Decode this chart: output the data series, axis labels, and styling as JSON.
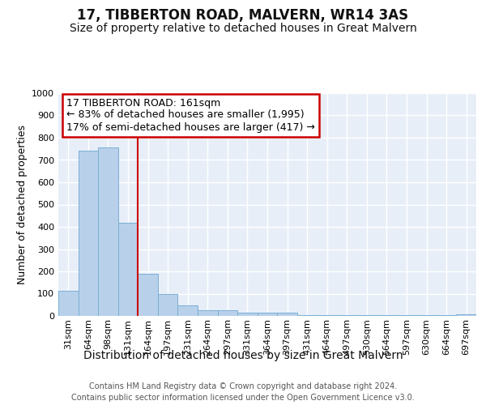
{
  "title": "17, TIBBERTON ROAD, MALVERN, WR14 3AS",
  "subtitle": "Size of property relative to detached houses in Great Malvern",
  "xlabel": "Distribution of detached houses by size in Great Malvern",
  "ylabel": "Number of detached properties",
  "categories": [
    "31sqm",
    "64sqm",
    "98sqm",
    "131sqm",
    "164sqm",
    "197sqm",
    "231sqm",
    "264sqm",
    "297sqm",
    "331sqm",
    "364sqm",
    "397sqm",
    "431sqm",
    "464sqm",
    "497sqm",
    "530sqm",
    "564sqm",
    "597sqm",
    "630sqm",
    "664sqm",
    "697sqm"
  ],
  "values": [
    113,
    743,
    755,
    420,
    190,
    97,
    47,
    25,
    25,
    15,
    15,
    15,
    2,
    2,
    2,
    2,
    2,
    2,
    2,
    2,
    8
  ],
  "bar_color": "#b8d0ea",
  "bar_edge_color": "#7aafd4",
  "bg_color": "#e8eef8",
  "grid_color": "#ffffff",
  "vline_color": "#cc0000",
  "vline_pos": 3.5,
  "annotation_line1": "17 TIBBERTON ROAD: 161sqm",
  "annotation_line2": "← 83% of detached houses are smaller (1,995)",
  "annotation_line3": "17% of semi-detached houses are larger (417) →",
  "annotation_box_color": "#ffffff",
  "annotation_box_edge": "#cc0000",
  "ylim": [
    0,
    1000
  ],
  "yticks": [
    0,
    100,
    200,
    300,
    400,
    500,
    600,
    700,
    800,
    900,
    1000
  ],
  "footer_line1": "Contains HM Land Registry data © Crown copyright and database right 2024.",
  "footer_line2": "Contains public sector information licensed under the Open Government Licence v3.0.",
  "title_fontsize": 12,
  "subtitle_fontsize": 10,
  "ylabel_fontsize": 9,
  "xlabel_fontsize": 10,
  "tick_fontsize": 8,
  "annot_fontsize": 9,
  "footer_fontsize": 7
}
